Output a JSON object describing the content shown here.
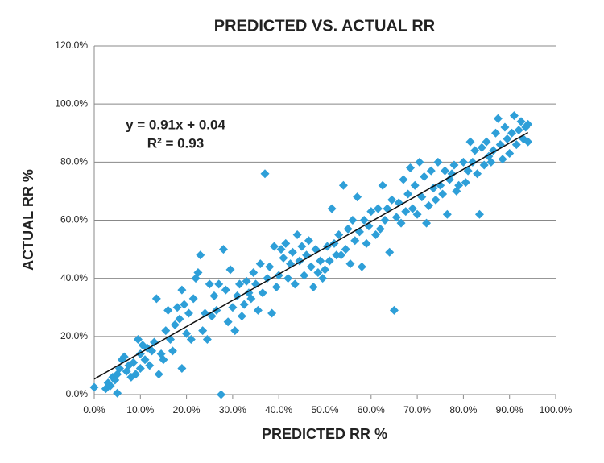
{
  "chart_data": {
    "type": "scatter",
    "title": "PREDICTED VS. ACTUAL RR",
    "x_label": "PREDICTED RR %",
    "y_label": "ACTUAL RR %",
    "annotations": [
      "y = 0.91x + 0.04",
      "R² = 0.93"
    ],
    "trendline": true,
    "grid": true,
    "xlim": [
      0,
      100
    ],
    "ylim": [
      0,
      120
    ],
    "xticks": [
      {
        "value": 0,
        "label": "0.0%"
      },
      {
        "value": 10,
        "label": "10.0%"
      },
      {
        "value": 20,
        "label": "20.0%"
      },
      {
        "value": 30,
        "label": "30.0%"
      },
      {
        "value": 40,
        "label": "40.0%"
      },
      {
        "value": 50,
        "label": "50.0%"
      },
      {
        "value": 60,
        "label": "60.0%"
      },
      {
        "value": 70,
        "label": "70.0%"
      },
      {
        "value": 80,
        "label": "80.0%"
      },
      {
        "value": 90,
        "label": "90.0%"
      },
      {
        "value": 100,
        "label": "100.0%"
      }
    ],
    "yticks": [
      {
        "value": 0,
        "label": "0.0%"
      },
      {
        "value": 20,
        "label": "20.0%"
      },
      {
        "value": 40,
        "label": "40.0%"
      },
      {
        "value": 60,
        "label": "60.0%"
      },
      {
        "value": 80,
        "label": "80.0%"
      },
      {
        "value": 100,
        "label": "100.0%"
      },
      {
        "value": 120,
        "label": "120.0%"
      }
    ],
    "series": [
      {
        "color": "#2e9fd8",
        "x": [
          0,
          2.5,
          3,
          3.5,
          4,
          4.5,
          5,
          5,
          5.5,
          6,
          6.5,
          7,
          7.5,
          8,
          8.5,
          9,
          9.5,
          10,
          10,
          10.5,
          11,
          11.5,
          12,
          12.5,
          13,
          13.5,
          14,
          14.5,
          15,
          15.5,
          16,
          16.5,
          17,
          17.5,
          18,
          18.5,
          19,
          19,
          19.5,
          20,
          20.5,
          21,
          21.5,
          22,
          22.5,
          23,
          23.5,
          24,
          24.5,
          25,
          25.5,
          26,
          26.5,
          27,
          27.5,
          28,
          28.5,
          29,
          29.5,
          30,
          30.5,
          31,
          31.5,
          32,
          32.5,
          33,
          33.5,
          34,
          34.5,
          35,
          35.5,
          36,
          36.5,
          37,
          37.5,
          38,
          38.5,
          39,
          39.5,
          40,
          40.5,
          41,
          41.5,
          42,
          42.5,
          43,
          43.5,
          44,
          44.5,
          45,
          45.5,
          46,
          46.5,
          47,
          47.5,
          48,
          48.5,
          49,
          49.5,
          50,
          50.5,
          51,
          51.5,
          52,
          52.5,
          53,
          53.5,
          54,
          54.5,
          55,
          55.5,
          56,
          56.5,
          57,
          57.5,
          58,
          58.5,
          59,
          59.5,
          60,
          61,
          61.5,
          62,
          62.5,
          63,
          63.5,
          64,
          64.5,
          65,
          65.5,
          66,
          66.5,
          67,
          67.5,
          68,
          68.5,
          69,
          69.5,
          70,
          70.5,
          71,
          71.5,
          72,
          72.5,
          73,
          73.5,
          74,
          74.5,
          75,
          75.5,
          76,
          76.5,
          77,
          77.5,
          78,
          78.5,
          79,
          80,
          80.5,
          81,
          81.5,
          82,
          82.5,
          83,
          83.5,
          84,
          84.5,
          85,
          85.5,
          86,
          86.5,
          87,
          87.5,
          88,
          88.5,
          89,
          89.5,
          90,
          90.5,
          91,
          91.5,
          92,
          92.5,
          93,
          93.5,
          94,
          94
        ],
        "values": [
          2.5,
          2,
          4,
          3,
          6,
          5,
          0.5,
          7,
          9,
          12,
          13,
          8,
          10,
          6,
          11,
          7,
          19,
          9,
          14,
          17,
          12,
          16,
          10,
          15,
          18,
          33,
          7,
          14,
          12,
          22,
          29,
          19,
          15,
          24,
          30,
          26,
          36,
          9,
          31,
          21,
          28,
          19,
          33,
          40,
          42,
          48,
          22,
          28,
          19,
          38,
          27,
          34,
          29,
          38,
          0,
          50,
          36,
          25,
          43,
          30,
          22,
          34,
          38,
          27,
          31,
          39,
          35,
          33,
          42,
          38,
          29,
          45,
          35,
          76,
          40,
          44,
          28,
          51,
          37,
          41,
          50,
          47,
          52,
          40,
          45,
          49,
          38,
          55,
          46,
          51,
          41,
          48,
          53,
          44,
          37,
          50,
          42,
          46,
          40,
          43,
          51,
          46,
          64,
          52,
          48,
          55,
          48,
          72,
          50,
          57,
          45,
          60,
          53,
          68,
          56,
          44,
          60,
          52,
          58,
          63,
          55,
          64,
          57,
          72,
          60,
          64,
          49,
          67,
          29,
          61,
          66,
          59,
          74,
          63,
          69,
          78,
          64,
          72,
          62,
          80,
          68,
          75,
          59,
          65,
          77,
          71,
          67,
          80,
          72,
          69,
          77,
          62,
          74,
          76,
          79,
          70,
          72,
          80,
          73,
          77,
          87,
          80,
          84,
          76,
          62,
          85,
          79,
          87,
          82,
          80,
          84,
          90,
          95,
          86,
          81,
          92,
          88,
          83,
          90,
          96,
          86,
          91,
          94,
          88,
          92,
          87,
          93
        ]
      }
    ]
  }
}
